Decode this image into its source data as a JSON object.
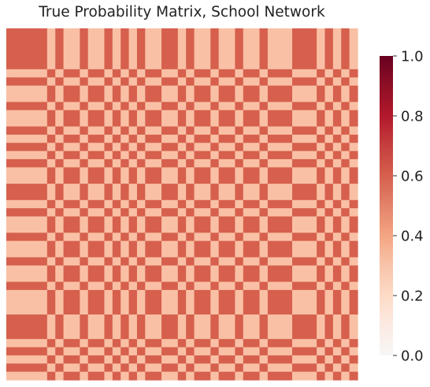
{
  "chart_data": {
    "type": "heatmap",
    "title": "True Probability Matrix, School Network",
    "xlabel": "",
    "ylabel": "",
    "blocks": [
      {
        "id": "A",
        "size": 1,
        "community": 1
      },
      {
        "id": "B",
        "size": 4,
        "community": 1
      },
      {
        "id": "C",
        "size": 1,
        "community": 2
      },
      {
        "id": "D",
        "size": 1,
        "community": 1
      },
      {
        "id": "E",
        "size": 2,
        "community": 2
      },
      {
        "id": "F",
        "size": 1,
        "community": 1
      },
      {
        "id": "G",
        "size": 2,
        "community": 2
      },
      {
        "id": "H",
        "size": 1,
        "community": 1
      },
      {
        "id": "I",
        "size": 1,
        "community": 2
      },
      {
        "id": "J",
        "size": 1,
        "community": 1
      },
      {
        "id": "K",
        "size": 1,
        "community": 2
      },
      {
        "id": "L",
        "size": 1,
        "community": 1
      },
      {
        "id": "M",
        "size": 2,
        "community": 2
      },
      {
        "id": "N",
        "size": 2,
        "community": 1
      },
      {
        "id": "O",
        "size": 1,
        "community": 2
      },
      {
        "id": "P",
        "size": 1,
        "community": 1
      },
      {
        "id": "Q",
        "size": 2,
        "community": 2
      },
      {
        "id": "R",
        "size": 1,
        "community": 1
      },
      {
        "id": "S",
        "size": 2,
        "community": 2
      },
      {
        "id": "T",
        "size": 1,
        "community": 1
      },
      {
        "id": "U",
        "size": 2,
        "community": 2
      },
      {
        "id": "V",
        "size": 1,
        "community": 1
      },
      {
        "id": "W",
        "size": 3,
        "community": 2
      },
      {
        "id": "X",
        "size": 3,
        "community": 1
      },
      {
        "id": "Y",
        "size": 1,
        "community": 2
      },
      {
        "id": "Z",
        "size": 1,
        "community": 1
      },
      {
        "id": "AA",
        "size": 1,
        "community": 2
      },
      {
        "id": "AB",
        "size": 1,
        "community": 1
      },
      {
        "id": "AC",
        "size": 1,
        "community": 2
      }
    ],
    "probabilities": {
      "same_community": 0.6,
      "different_community": 0.3
    },
    "color_range": [
      0.0,
      1.0
    ],
    "colormap": "RdBu_r (upper half)",
    "colorbar": {
      "ticks": [
        0.0,
        0.2,
        0.4,
        0.6,
        0.8,
        1.0
      ],
      "tick_labels": [
        "0.0",
        "0.2",
        "0.4",
        "0.6",
        "0.8",
        "1.0"
      ],
      "placement": "right"
    },
    "grid": false
  }
}
